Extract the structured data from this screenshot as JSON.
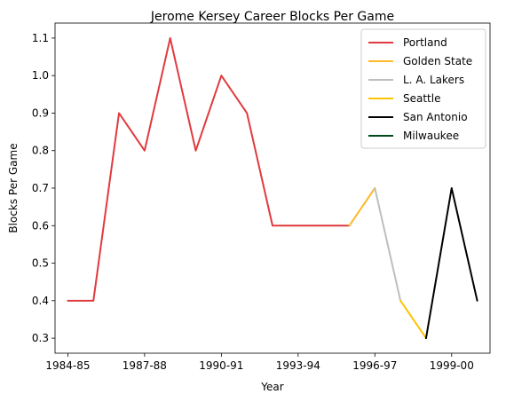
{
  "chart_data": {
    "type": "line",
    "title": "Jerome Kersey Career Blocks Per Game",
    "xlabel": "Year",
    "ylabel": "Blocks Per Game",
    "x": [
      "1984-85",
      "1985-86",
      "1986-87",
      "1987-88",
      "1988-89",
      "1989-90",
      "1990-91",
      "1991-92",
      "1992-93",
      "1993-94",
      "1994-95",
      "1995-96",
      "1996-97",
      "1997-98",
      "1998-99",
      "1999-00",
      "2000-01"
    ],
    "xticks": [
      "1984-85",
      "1987-88",
      "1990-91",
      "1993-94",
      "1996-97",
      "1999-00"
    ],
    "yticks": [
      0.3,
      0.4,
      0.5,
      0.6,
      0.7,
      0.8,
      0.9,
      1.0,
      1.1
    ],
    "yticklabels": [
      "0.3",
      "0.4",
      "0.5",
      "0.6",
      "0.7",
      "0.8",
      "0.9",
      "1.0",
      "1.1"
    ],
    "ylim": [
      0.26,
      1.14
    ],
    "grid": false,
    "legend_position": "top-right",
    "series": [
      {
        "name": "Portland",
        "color": "#e03a3e",
        "x": [
          "1984-85",
          "1985-86",
          "1986-87",
          "1987-88",
          "1988-89",
          "1989-90",
          "1990-91",
          "1991-92",
          "1992-93",
          "1993-94",
          "1994-95",
          "1995-96"
        ],
        "values": [
          0.4,
          0.4,
          0.9,
          0.8,
          1.1,
          0.8,
          1.0,
          0.9,
          0.6,
          0.6,
          0.6,
          0.6
        ]
      },
      {
        "name": "Golden State",
        "color": "#fdb927",
        "x": [
          "1995-96",
          "1996-97"
        ],
        "values": [
          0.6,
          0.7
        ]
      },
      {
        "name": "L. A. Lakers",
        "color": "#bebebe",
        "x": [
          "1996-97",
          "1997-98"
        ],
        "values": [
          0.7,
          0.4
        ]
      },
      {
        "name": "Seattle",
        "color": "#ffc200",
        "x": [
          "1997-98",
          "1998-99"
        ],
        "values": [
          0.4,
          0.3
        ]
      },
      {
        "name": "San Antonio",
        "color": "#000000",
        "x": [
          "1998-99",
          "1999-00",
          "2000-01"
        ],
        "values": [
          0.3,
          0.7,
          0.4
        ]
      },
      {
        "name": "Milwaukee",
        "color": "#00471b",
        "x": [],
        "values": []
      }
    ]
  }
}
